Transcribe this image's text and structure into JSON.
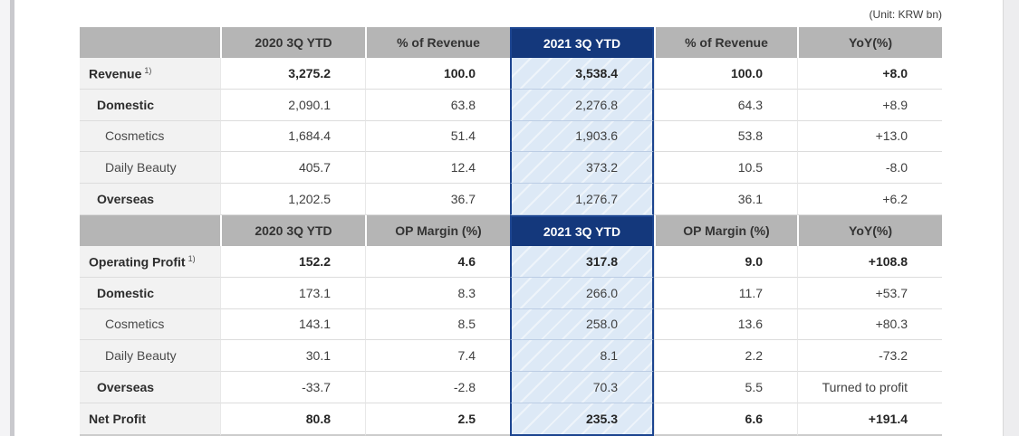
{
  "unit_note": "(Unit: KRW bn)",
  "colors": {
    "highlight_header_bg": "#14387c",
    "highlight_column_bg": "#dde9f6",
    "highlight_border": "#1c4590",
    "header_bg": "#b5b5b5",
    "label_column_bg": "#f2f2f2"
  },
  "table": {
    "sections": [
      {
        "header": [
          "",
          "2020 3Q YTD",
          "% of Revenue",
          "2021 3Q YTD",
          "% of Revenue",
          "YoY(%)"
        ],
        "rows": [
          {
            "label": "Revenue",
            "sup": "1)",
            "indent": 0,
            "bold": true,
            "values_bold": true,
            "values": [
              "3,275.2",
              "100.0",
              "3,538.4",
              "100.0",
              "+8.0"
            ]
          },
          {
            "label": "Domestic",
            "indent": 1,
            "bold": true,
            "values_bold": false,
            "values": [
              "2,090.1",
              "63.8",
              "2,276.8",
              "64.3",
              "+8.9"
            ]
          },
          {
            "label": "Cosmetics",
            "indent": 2,
            "bold": false,
            "values_bold": false,
            "values": [
              "1,684.4",
              "51.4",
              "1,903.6",
              "53.8",
              "+13.0"
            ]
          },
          {
            "label": "Daily Beauty",
            "indent": 2,
            "bold": false,
            "values_bold": false,
            "values": [
              "405.7",
              "12.4",
              "373.2",
              "10.5",
              "-8.0"
            ]
          },
          {
            "label": "Overseas",
            "indent": 1,
            "bold": true,
            "values_bold": false,
            "values": [
              "1,202.5",
              "36.7",
              "1,276.7",
              "36.1",
              "+6.2"
            ]
          }
        ]
      },
      {
        "header": [
          "",
          "2020 3Q YTD",
          "OP Margin (%)",
          "2021 3Q YTD",
          "OP Margin (%)",
          "YoY(%)"
        ],
        "rows": [
          {
            "label": "Operating Profit",
            "sup": "1)",
            "indent": 0,
            "bold": true,
            "values_bold": true,
            "values": [
              "152.2",
              "4.6",
              "317.8",
              "9.0",
              "+108.8"
            ]
          },
          {
            "label": "Domestic",
            "indent": 1,
            "bold": true,
            "values_bold": false,
            "values": [
              "173.1",
              "8.3",
              "266.0",
              "11.7",
              "+53.7"
            ]
          },
          {
            "label": "Cosmetics",
            "indent": 2,
            "bold": false,
            "values_bold": false,
            "values": [
              "143.1",
              "8.5",
              "258.0",
              "13.6",
              "+80.3"
            ]
          },
          {
            "label": "Daily Beauty",
            "indent": 2,
            "bold": false,
            "values_bold": false,
            "values": [
              "30.1",
              "7.4",
              "8.1",
              "2.2",
              "-73.2"
            ]
          },
          {
            "label": "Overseas",
            "indent": 1,
            "bold": true,
            "values_bold": false,
            "values": [
              "-33.7",
              "-2.8",
              "70.3",
              "5.5",
              "Turned to profit"
            ]
          },
          {
            "label": "Net Profit",
            "indent": 0,
            "bold": true,
            "values_bold": true,
            "values": [
              "80.8",
              "2.5",
              "235.3",
              "6.6",
              "+191.4"
            ]
          }
        ]
      }
    ]
  }
}
